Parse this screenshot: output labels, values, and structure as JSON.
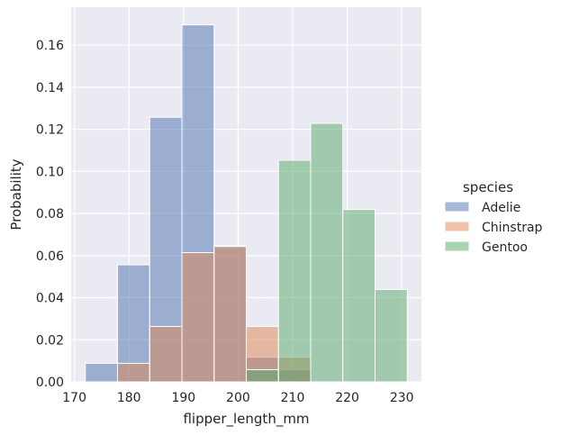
{
  "chart_data": {
    "type": "histogram",
    "xlabel": "flipper_length_mm",
    "ylabel": "Probability",
    "xlim": [
      169.4,
      233.6
    ],
    "ylim": [
      0,
      0.178
    ],
    "xticks": [
      170,
      180,
      190,
      200,
      210,
      220,
      230
    ],
    "yticks": [
      0.0,
      0.02,
      0.04,
      0.06,
      0.08,
      0.1,
      0.12,
      0.14,
      0.16
    ],
    "ytick_labels": [
      "0.00",
      "0.02",
      "0.04",
      "0.06",
      "0.08",
      "0.10",
      "0.12",
      "0.14",
      "0.16"
    ],
    "grid": true,
    "legend": {
      "title": "species",
      "placement": "right"
    },
    "bin_edges": [
      172.0,
      177.9,
      183.8,
      189.7,
      195.6,
      201.5,
      207.4,
      213.3,
      219.2,
      225.1,
      231.0
    ],
    "series": [
      {
        "name": "Adelie",
        "color": "#4c72b0",
        "values": [
          0.0088,
          0.0556,
          0.1257,
          0.1696,
          0.0646,
          0.0117,
          0.0058,
          0,
          0,
          0
        ]
      },
      {
        "name": "Chinstrap",
        "color": "#dd8452",
        "values": [
          0,
          0.0088,
          0.0263,
          0.0614,
          0.0643,
          0.0263,
          0.0117,
          0,
          0,
          0
        ]
      },
      {
        "name": "Gentoo",
        "color": "#55a868",
        "values": [
          0,
          0,
          0,
          0,
          0,
          0.0058,
          0.1053,
          0.1228,
          0.0819,
          0.0439
        ]
      }
    ]
  }
}
